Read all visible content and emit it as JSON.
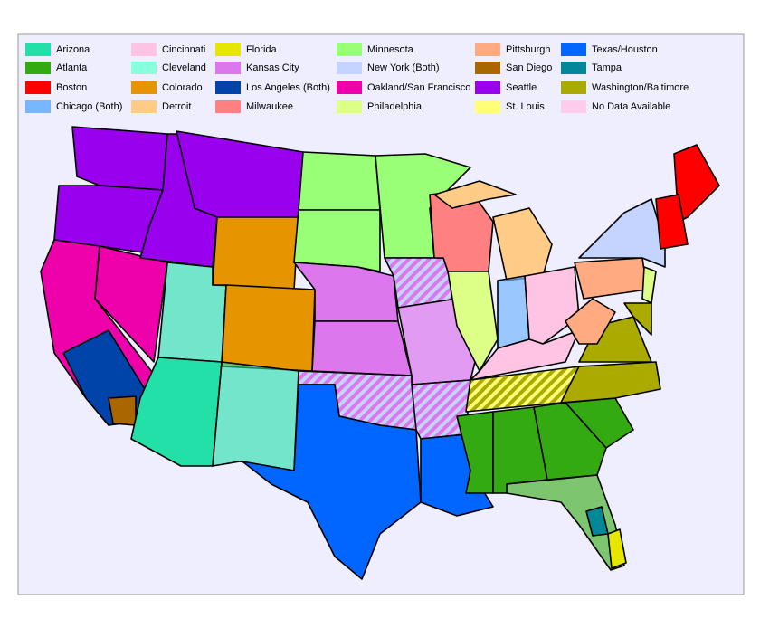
{
  "legend": {
    "items": [
      {
        "label": "Arizona",
        "color": "#22e0a8"
      },
      {
        "label": "Atlanta",
        "color": "#33aa11"
      },
      {
        "label": "Boston",
        "color": "#ff0000"
      },
      {
        "label": "Chicago (Both)",
        "color": "#77b7ff"
      },
      {
        "label": "Cincinnati",
        "color": "#ffc4e4"
      },
      {
        "label": "Cleveland",
        "color": "#88ffdd"
      },
      {
        "label": "Colorado",
        "color": "#e69500"
      },
      {
        "label": "Detroit",
        "color": "#ffcc88"
      },
      {
        "label": "Florida",
        "color": "#e6e600"
      },
      {
        "label": "Kansas City",
        "color": "#dd77ee"
      },
      {
        "label": "Los Angeles (Both)",
        "color": "#0044aa"
      },
      {
        "label": "Milwaukee",
        "color": "#ff8080"
      },
      {
        "label": "Minnesota",
        "color": "#99ff77"
      },
      {
        "label": "New York (Both)",
        "color": "#c4d4ff"
      },
      {
        "label": "Oakland/San Francisco",
        "color": "#ee00aa"
      },
      {
        "label": "Philadelphia",
        "color": "#ddff88"
      },
      {
        "label": "Pittsburgh",
        "color": "#ffaa80"
      },
      {
        "label": "San Diego",
        "color": "#aa6600"
      },
      {
        "label": "Seattle",
        "color": "#9900ee"
      },
      {
        "label": "St. Louis",
        "color": "#ffff77"
      },
      {
        "label": "Texas/Houston",
        "color": "#0066ff"
      },
      {
        "label": "Tampa",
        "color": "#008899"
      },
      {
        "label": "Washington/Baltimore",
        "color": "#aaaa00"
      },
      {
        "label": "No Data Available",
        "color": "#ffccee"
      }
    ]
  }
}
